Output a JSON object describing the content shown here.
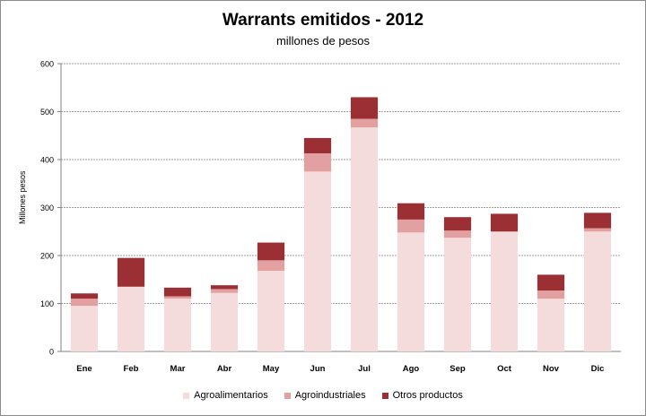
{
  "chart_data": {
    "type": "bar",
    "stacked": true,
    "title": "Warrants emitidos  - 2012",
    "subtitle": "millones de pesos",
    "xlabel": "",
    "ylabel": "Millones pesos",
    "categories": [
      "Ene",
      "Feb",
      "Mar",
      "Abr",
      "May",
      "Jun",
      "Jul",
      "Ago",
      "Sep",
      "Oct",
      "Nov",
      "Dic"
    ],
    "ylim": [
      0,
      600
    ],
    "yticks": [
      0,
      100,
      200,
      300,
      400,
      500,
      600
    ],
    "grid": true,
    "legend_position": "bottom",
    "series": [
      {
        "name": "Agroalimentarios",
        "color": "#f5dcdc",
        "values": [
          95,
          135,
          110,
          122,
          168,
          375,
          467,
          248,
          237,
          250,
          110,
          250
        ]
      },
      {
        "name": "Agroindustriales",
        "color": "#e3a0a0",
        "values": [
          15,
          0,
          5,
          8,
          22,
          38,
          18,
          27,
          15,
          0,
          17,
          7
        ]
      },
      {
        "name": "Otros productos",
        "color": "#9c2f33",
        "values": [
          11,
          60,
          18,
          8,
          37,
          32,
          45,
          34,
          28,
          37,
          33,
          32
        ]
      }
    ]
  }
}
